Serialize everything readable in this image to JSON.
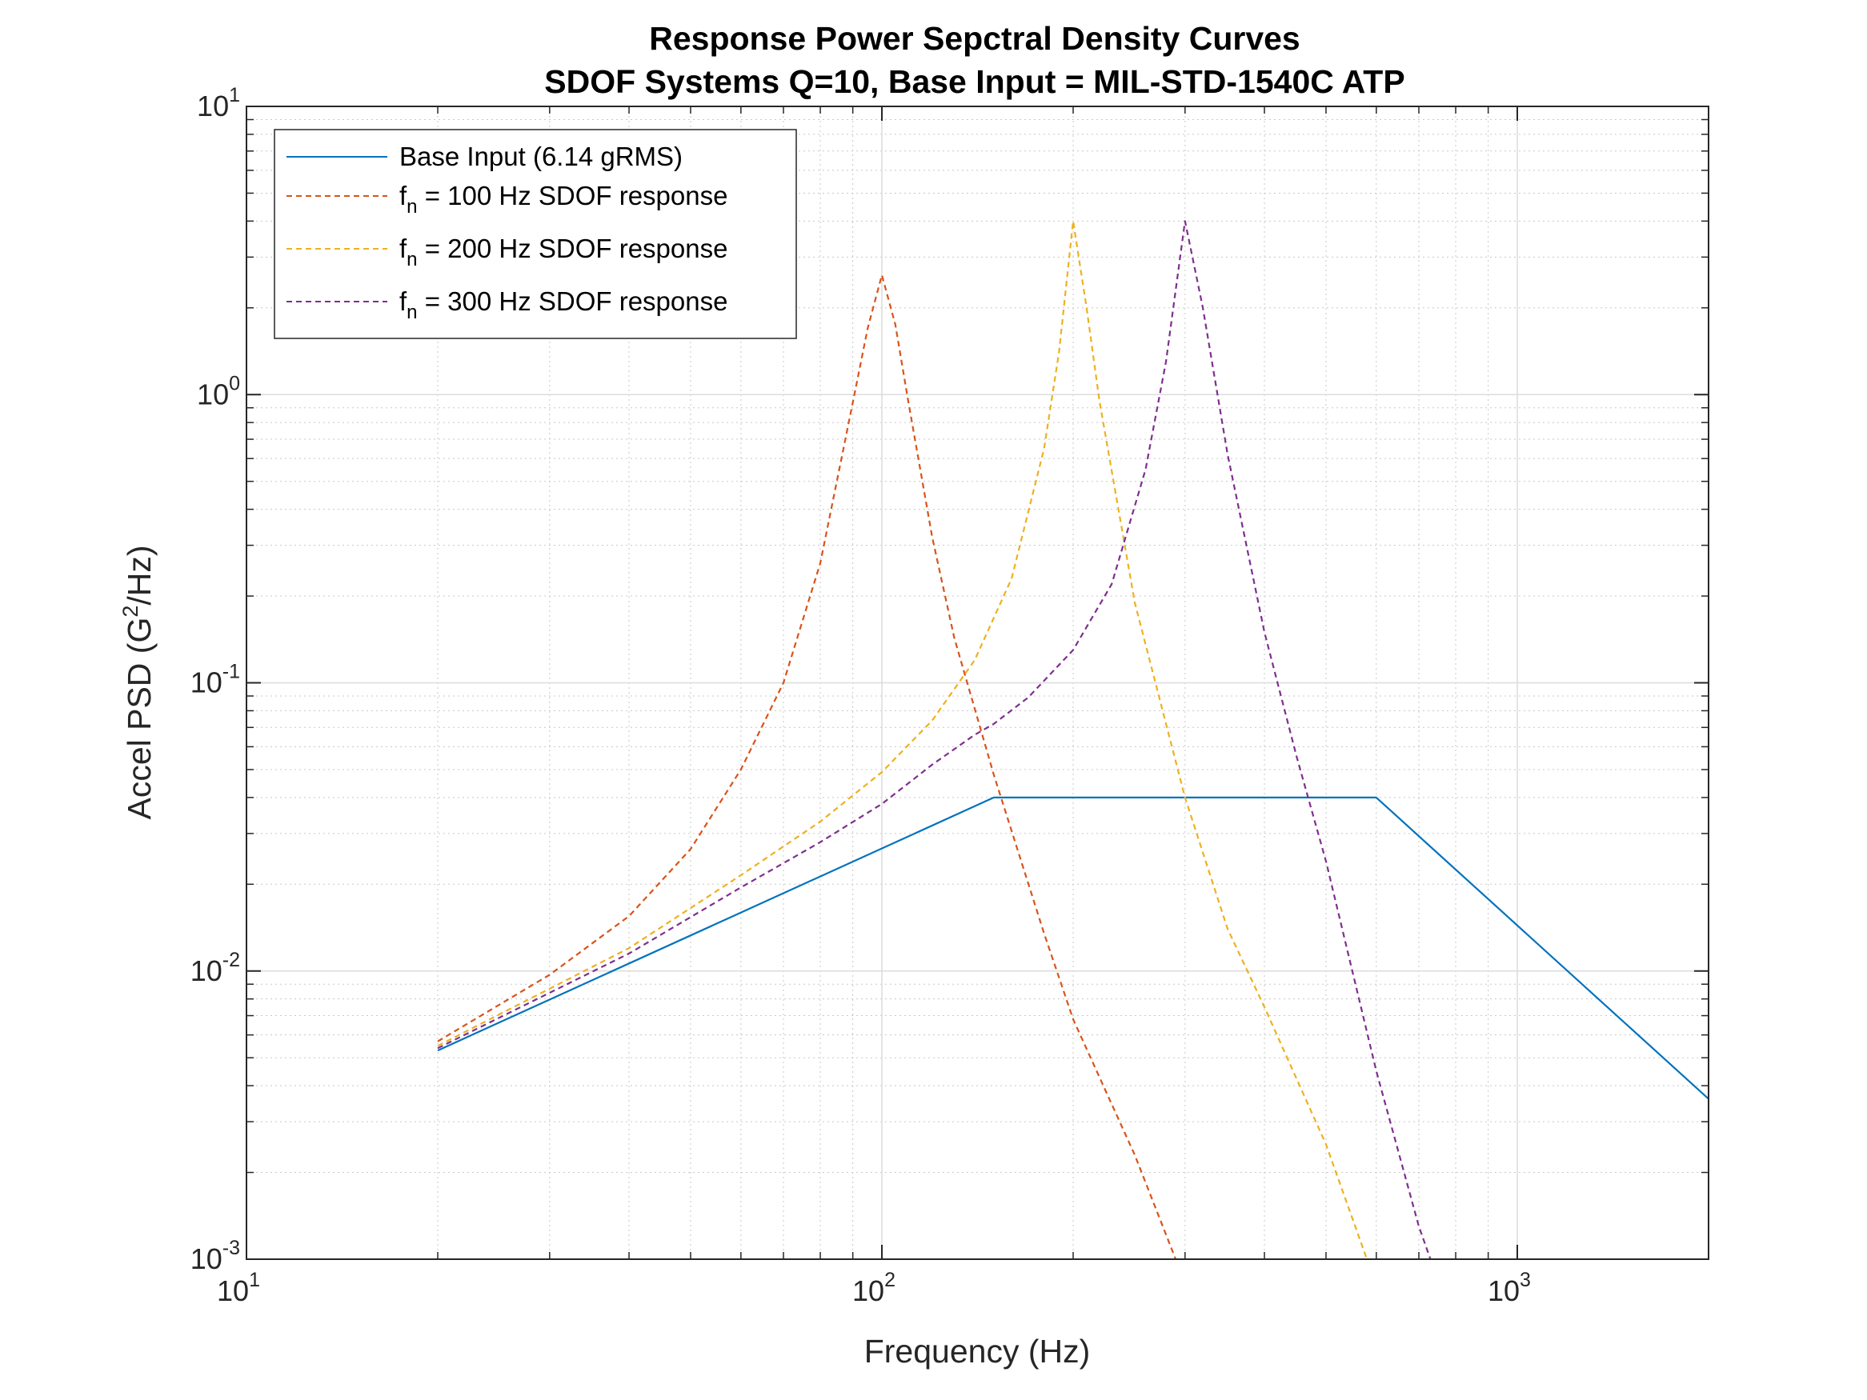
{
  "chart_data": {
    "type": "line",
    "title": [
      "Response Power Sepctral Density Curves",
      "SDOF Systems  Q=10, Base Input = MIL-STD-1540C ATP"
    ],
    "xlabel": "Frequency (Hz)",
    "ylabel": {
      "prefix": "Accel PSD (G",
      "sup": "2",
      "suffix": "/Hz)"
    },
    "xscale": "log",
    "yscale": "log",
    "xlim": [
      10,
      2000
    ],
    "ylim": [
      0.001,
      10
    ],
    "grid": true,
    "legend_position": "top-left",
    "x_ticks": [
      {
        "value": 10,
        "base": "10",
        "exp": "1"
      },
      {
        "value": 100,
        "base": "10",
        "exp": "2"
      },
      {
        "value": 1000,
        "base": "10",
        "exp": "3"
      }
    ],
    "y_ticks": [
      {
        "value": 10,
        "base": "10",
        "exp": "1"
      },
      {
        "value": 1,
        "base": "10",
        "exp": "0"
      },
      {
        "value": 0.1,
        "base": "10",
        "exp": "-1"
      },
      {
        "value": 0.01,
        "base": "10",
        "exp": "-2"
      },
      {
        "value": 0.001,
        "base": "10",
        "exp": "-3"
      }
    ],
    "series": [
      {
        "name": "Base Input (6.14 gRMS)",
        "color": "#0072BD",
        "style": "solid",
        "x": [
          20,
          150,
          600,
          2000
        ],
        "y": [
          0.0053,
          0.04,
          0.04,
          0.0036
        ]
      },
      {
        "name": {
          "pre": "f",
          "sub": "n",
          "post": " = 100 Hz SDOF response"
        },
        "color": "#D95319",
        "style": "dashed",
        "x": [
          20,
          30,
          40,
          50,
          60,
          70,
          80,
          90,
          95,
          100,
          105,
          110,
          120,
          130,
          150,
          180,
          200,
          250,
          290
        ],
        "y": [
          0.0057,
          0.0097,
          0.0155,
          0.0265,
          0.05,
          0.1,
          0.26,
          0.94,
          1.7,
          2.6,
          1.75,
          0.95,
          0.32,
          0.143,
          0.048,
          0.0135,
          0.0068,
          0.0023,
          0.001
        ]
      },
      {
        "name": {
          "pre": "f",
          "sub": "n",
          "post": " = 200 Hz SDOF response"
        },
        "color": "#EDB120",
        "style": "dashed",
        "x": [
          20,
          40,
          60,
          80,
          100,
          120,
          140,
          160,
          180,
          190,
          200,
          210,
          220,
          250,
          300,
          350,
          400,
          500,
          580
        ],
        "y": [
          0.0055,
          0.012,
          0.0215,
          0.033,
          0.049,
          0.074,
          0.12,
          0.23,
          0.65,
          1.4,
          4.0,
          2.0,
          0.95,
          0.19,
          0.04,
          0.014,
          0.0075,
          0.0025,
          0.001
        ]
      },
      {
        "name": {
          "pre": "f",
          "sub": "n",
          "post": " = 300 Hz SDOF response"
        },
        "color": "#7E2F8E",
        "style": "dashed",
        "x": [
          20,
          40,
          60,
          80,
          100,
          120,
          140,
          150,
          170,
          200,
          230,
          260,
          280,
          300,
          320,
          350,
          400,
          450,
          500,
          600,
          700,
          730
        ],
        "y": [
          0.0054,
          0.0115,
          0.0195,
          0.028,
          0.038,
          0.052,
          0.066,
          0.072,
          0.089,
          0.13,
          0.22,
          0.55,
          1.3,
          4.0,
          2.0,
          0.62,
          0.15,
          0.055,
          0.024,
          0.0045,
          0.0013,
          0.001
        ]
      }
    ]
  }
}
